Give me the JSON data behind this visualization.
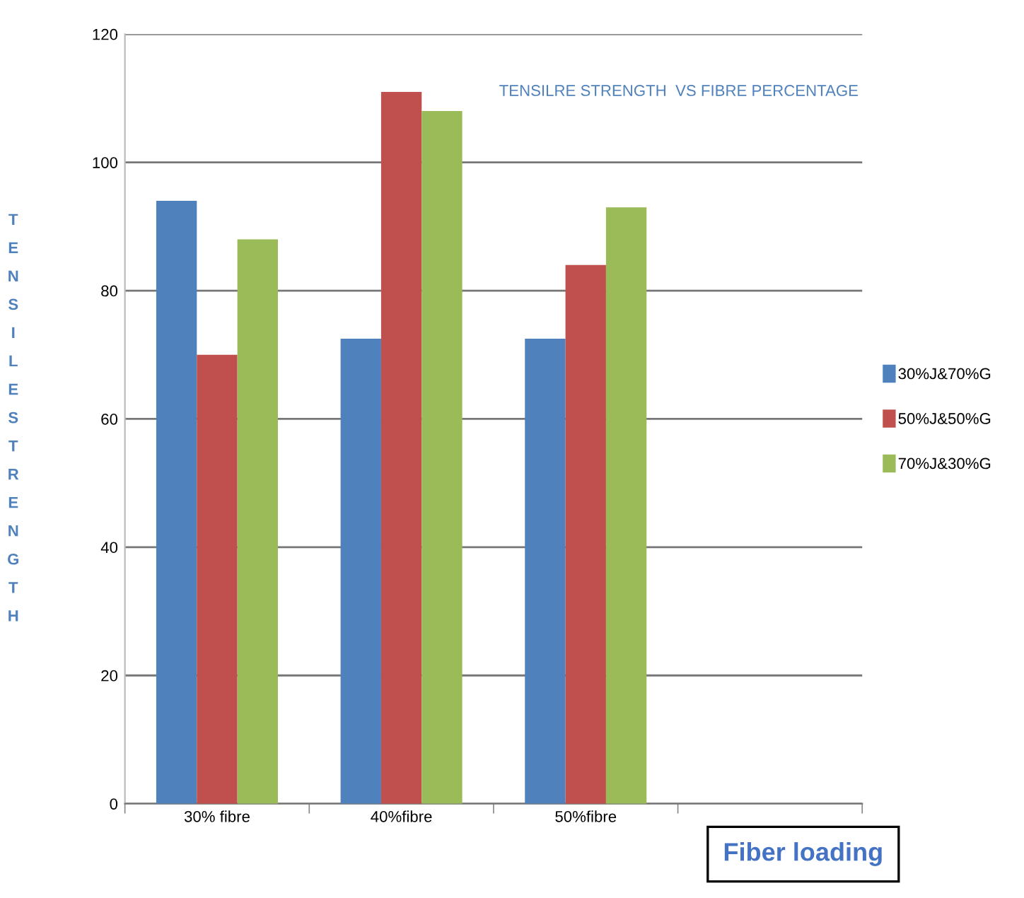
{
  "chart_data": {
    "type": "bar",
    "title": "TENSILRE STRENGTH  VS FIBRE PERCENTAGE",
    "xlabel": "Fiber loading",
    "ylabel": "TENSILESTRENGTH",
    "categories": [
      "30% fibre",
      "40%fibre",
      "50%fibre",
      null
    ],
    "series": [
      {
        "name": "30%J&70%G",
        "color": "#4f81bd",
        "values": [
          94,
          72.5,
          72.5,
          null
        ]
      },
      {
        "name": "50%J&50%G",
        "color": "#c0504d",
        "values": [
          70,
          111,
          84,
          null
        ]
      },
      {
        "name": "70%J&30%G",
        "color": "#9bbb59",
        "values": [
          88,
          108,
          93,
          null
        ]
      }
    ],
    "ylim": [
      0,
      120
    ],
    "yticks": [
      0,
      20,
      40,
      60,
      80,
      100,
      120
    ],
    "grid": "y",
    "legend": "right"
  }
}
